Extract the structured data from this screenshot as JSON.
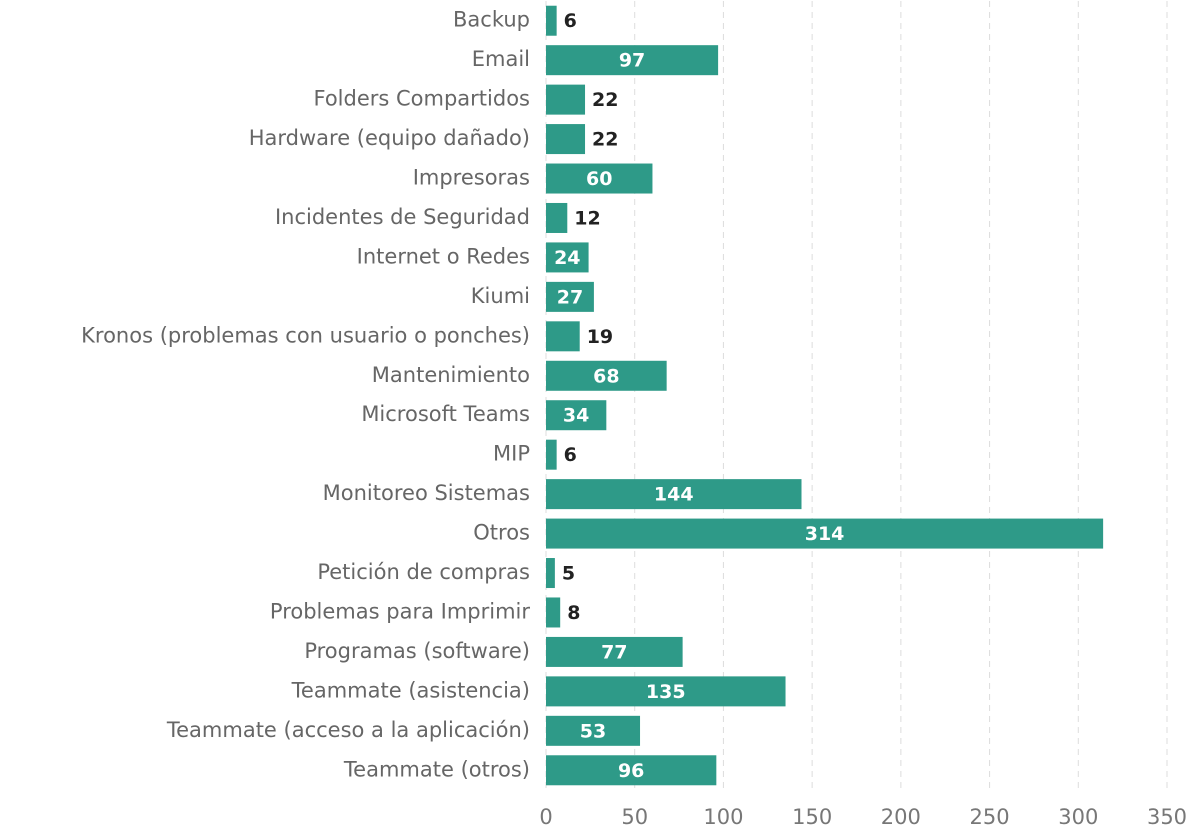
{
  "chart_data": {
    "type": "barh",
    "categories": [
      "Backup",
      "Email",
      "Folders Compartidos",
      "Hardware (equipo dañado)",
      "Impresoras",
      "Incidentes de Seguridad",
      "Internet o Redes",
      "Kiumi",
      "Kronos (problemas con usuario o ponches)",
      "Mantenimiento",
      "Microsoft Teams",
      "MIP",
      "Monitoreo Sistemas",
      "Otros",
      "Petición de compras",
      "Problemas para Imprimir",
      "Programas (software)",
      "Teammate (asistencia)",
      "Teammate (acceso a la aplicación)",
      "Teammate (otros)"
    ],
    "values": [
      6,
      97,
      22,
      22,
      60,
      12,
      24,
      27,
      19,
      68,
      34,
      6,
      144,
      314,
      5,
      8,
      77,
      135,
      53,
      96
    ],
    "color": "#2e9a88",
    "xlim": [
      0,
      350
    ],
    "xticks": [
      0,
      50,
      100,
      150,
      200,
      250,
      300,
      350
    ],
    "grid": true
  }
}
